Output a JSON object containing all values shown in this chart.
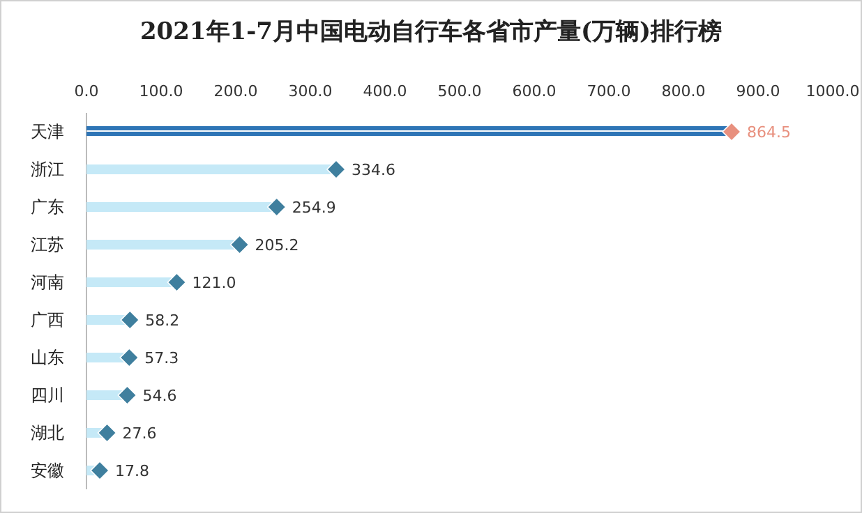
{
  "chart_data": {
    "type": "lollipop",
    "orientation": "horizontal",
    "title": "2021年1-7月中国电动自行车各省市产量(万辆)排行榜",
    "categories": [
      "天津",
      "浙江",
      "广东",
      "江苏",
      "河南",
      "广西",
      "山东",
      "四川",
      "湖北",
      "安徽"
    ],
    "series": [
      {
        "color": "#2e75b6",
        "colors": [
          "#e8907e",
          "#3f7f9e",
          "#3f7f9e",
          "#3f7f9e",
          "#3f7f9e",
          "#3f7f9e",
          "#3f7f9e",
          "#3f7f9e",
          "#3f7f9e",
          "#3f7f9e"
        ],
        "values": [
          864.5,
          334.6,
          254.9,
          205.2,
          121.0,
          58.2,
          57.3,
          54.6,
          27.6,
          17.8
        ],
        "value_labels": [
          "864.5",
          "334.6",
          "254.9",
          "205.2",
          "121.0",
          "58.2",
          "57.3",
          "54.6",
          "27.6",
          "17.8"
        ]
      }
    ],
    "xlim": [
      0,
      1000
    ],
    "xticks": [
      {
        "value": 0,
        "label": "0.0"
      },
      {
        "value": 100,
        "label": "100.0"
      },
      {
        "value": 200,
        "label": "200.0"
      },
      {
        "value": 300,
        "label": "300.0"
      },
      {
        "value": 400,
        "label": "400.0"
      },
      {
        "value": 500,
        "label": "500.0"
      },
      {
        "value": 600,
        "label": "600.0"
      },
      {
        "value": 700,
        "label": "700.0"
      },
      {
        "value": 800,
        "label": "800.0"
      },
      {
        "value": 900,
        "label": "900.0"
      },
      {
        "value": 1000,
        "label": "1000.0"
      }
    ],
    "marker": "diamond",
    "grid": false
  }
}
